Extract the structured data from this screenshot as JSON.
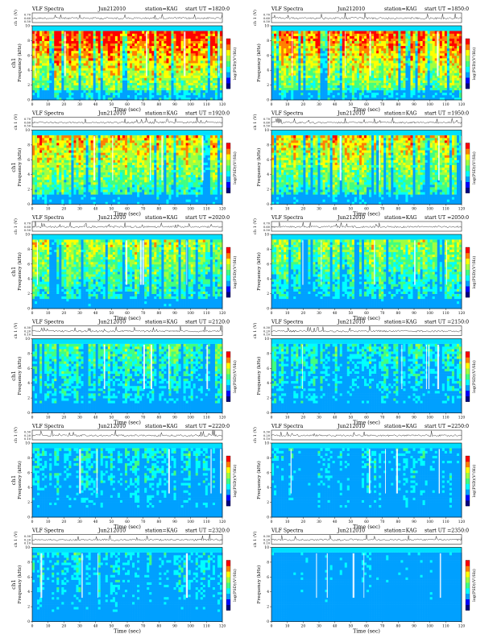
{
  "chart_data": [
    {
      "type": "heatmap",
      "title_left": "VLF Spectra",
      "date": "Jun212010",
      "station": "station=KAG",
      "start": "start UT =1820:0",
      "ylabel_top": "ch 1 (V)",
      "ylabel_main": "Frequency (kHz)",
      "ch_label": "ch1",
      "colorbar_label": "log(PSD)(V²/Hz)",
      "xlabel": "Time (sec)",
      "xticks": [
        0,
        10,
        20,
        30,
        40,
        50,
        60,
        70,
        80,
        90,
        100,
        110,
        120
      ],
      "yticks": [
        0,
        2,
        4,
        6,
        8,
        10
      ],
      "ylim": [
        0,
        10
      ],
      "xlim": [
        0,
        120
      ],
      "top_ticks": [
        "0.70",
        "0.60",
        "0.50"
      ],
      "intensity": 0.86
    },
    {
      "type": "heatmap",
      "title_left": "VLF Spectra",
      "date": "Jun212010",
      "station": "station=KAG",
      "start": "start UT =1850:0",
      "ylabel_top": "ch 1 (V)",
      "ylabel_main": "Frequency (kHz)",
      "ch_label": "",
      "colorbar_label": "log(PSD)(V²/Hz)",
      "xlabel": "Time (sec)",
      "xticks": [
        0,
        10,
        20,
        30,
        40,
        50,
        60,
        70,
        80,
        90,
        100,
        110,
        120
      ],
      "yticks": [
        0,
        2,
        4,
        6,
        8,
        10
      ],
      "ylim": [
        0,
        10
      ],
      "xlim": [
        0,
        120
      ],
      "top_ticks": [
        "0.70",
        "0.60",
        "0.50"
      ],
      "intensity": 0.82
    },
    {
      "type": "heatmap",
      "title_left": "VLF Spectra",
      "date": "Jun212010",
      "station": "station=KAG",
      "start": "start UT =1920:0",
      "ylabel_top": "ch 1 (V)",
      "ylabel_main": "Frequency (kHz)",
      "ch_label": "ch1",
      "colorbar_label": "log(PSD)(V²/Hz)",
      "xlabel": "Time (sec)",
      "xticks": [
        0,
        10,
        20,
        30,
        40,
        50,
        60,
        70,
        80,
        90,
        100,
        110,
        120
      ],
      "yticks": [
        0,
        2,
        4,
        6,
        8,
        10
      ],
      "ylim": [
        0,
        10
      ],
      "xlim": [
        0,
        120
      ],
      "top_ticks": [
        "0.70",
        "0.60",
        "0.50"
      ],
      "intensity": 0.72
    },
    {
      "type": "heatmap",
      "title_left": "VLF Spectra",
      "date": "Jun212010",
      "station": "station=KAG",
      "start": "start UT =1950:0",
      "ylabel_top": "ch 1 (V)",
      "ylabel_main": "Frequency (kHz)",
      "ch_label": "",
      "colorbar_label": "log(PSD)(V²/Hz)",
      "xlabel": "Time (sec)",
      "xticks": [
        0,
        10,
        20,
        30,
        40,
        50,
        60,
        70,
        80,
        90,
        100,
        110,
        120
      ],
      "yticks": [
        0,
        2,
        4,
        6,
        8,
        10
      ],
      "ylim": [
        0,
        10
      ],
      "xlim": [
        0,
        120
      ],
      "top_ticks": [
        "0.70",
        "0.60",
        "0.50"
      ],
      "intensity": 0.7
    },
    {
      "type": "heatmap",
      "title_left": "VLF Spectra",
      "date": "Jun212010",
      "station": "station=KAG",
      "start": "start UT =2020:0",
      "ylabel_top": "ch 1 (V)",
      "ylabel_main": "Frequency (kHz)",
      "ch_label": "ch1",
      "colorbar_label": "log(PSD)(V²/Hz)",
      "xlabel": "Time (sec)",
      "xticks": [
        0,
        10,
        20,
        30,
        40,
        50,
        60,
        70,
        80,
        90,
        100,
        110,
        120
      ],
      "yticks": [
        0,
        2,
        4,
        6,
        8,
        10
      ],
      "ylim": [
        0,
        10
      ],
      "xlim": [
        0,
        120
      ],
      "top_ticks": [
        "0.70",
        "0.60",
        "0.50"
      ],
      "intensity": 0.6
    },
    {
      "type": "heatmap",
      "title_left": "VLF Spectra",
      "date": "Jun212010",
      "station": "station=KAG",
      "start": "start UT =2050:0",
      "ylabel_top": "ch 1 (V)",
      "ylabel_main": "Frequency (kHz)",
      "ch_label": "",
      "colorbar_label": "log(PSD)(V²/Hz)",
      "xlabel": "Time (sec)",
      "xticks": [
        0,
        10,
        20,
        30,
        40,
        50,
        60,
        70,
        80,
        90,
        100,
        110,
        120
      ],
      "yticks": [
        0,
        2,
        4,
        6,
        8,
        10
      ],
      "ylim": [
        0,
        10
      ],
      "xlim": [
        0,
        120
      ],
      "top_ticks": [
        "0.70",
        "0.60",
        "0.50"
      ],
      "intensity": 0.56
    },
    {
      "type": "heatmap",
      "title_left": "VLF Spectra",
      "date": "Jun212010",
      "station": "station=KAG",
      "start": "start UT =2120:0",
      "ylabel_top": "ch 1 (V)",
      "ylabel_main": "Frequency (kHz)",
      "ch_label": "ch1",
      "colorbar_label": "log(PSD)(V²/Hz)",
      "xlabel": "Time (sec)",
      "xticks": [
        0,
        10,
        20,
        30,
        40,
        50,
        60,
        70,
        80,
        90,
        100,
        110,
        120
      ],
      "yticks": [
        0,
        2,
        4,
        6,
        8,
        10
      ],
      "ylim": [
        0,
        10
      ],
      "xlim": [
        0,
        120
      ],
      "top_ticks": [
        "0.30",
        "0.20",
        "0.10"
      ],
      "intensity": 0.46
    },
    {
      "type": "heatmap",
      "title_left": "VLF Spectra",
      "date": "Jun212010",
      "station": "station=KAG",
      "start": "start UT =2150:0",
      "ylabel_top": "ch 1 (V)",
      "ylabel_main": "Frequency (kHz)",
      "ch_label": "",
      "colorbar_label": "log(PSD)(V²/Hz)",
      "xlabel": "Time (sec)",
      "xticks": [
        0,
        10,
        20,
        30,
        40,
        50,
        60,
        70,
        80,
        90,
        100,
        110,
        120
      ],
      "yticks": [
        0,
        2,
        4,
        6,
        8,
        10
      ],
      "ylim": [
        0,
        10
      ],
      "xlim": [
        0,
        120
      ],
      "top_ticks": [
        "0.30",
        "0.20",
        "0.10"
      ],
      "intensity": 0.4
    },
    {
      "type": "heatmap",
      "title_left": "VLF Spectra",
      "date": "Jun212010",
      "station": "station=KAG",
      "start": "start UT =2220:0",
      "ylabel_top": "ch 1 (V)",
      "ylabel_main": "Frequency (kHz)",
      "ch_label": "ch1",
      "colorbar_label": "log(PSD)(V²/Hz)",
      "xlabel": "Time (sec)",
      "xticks": [
        0,
        10,
        20,
        30,
        40,
        50,
        60,
        70,
        80,
        90,
        100,
        110,
        120
      ],
      "yticks": [
        0,
        2,
        4,
        6,
        8,
        10
      ],
      "ylim": [
        0,
        10
      ],
      "xlim": [
        0,
        120
      ],
      "top_ticks": [
        "0.30",
        "0.20",
        "0.10"
      ],
      "intensity": 0.34
    },
    {
      "type": "heatmap",
      "title_left": "VLF Spectra",
      "date": "Jun212010",
      "station": "station=KAG",
      "start": "start UT =2250:0",
      "ylabel_top": "ch 1 (V)",
      "ylabel_main": "Frequency (kHz)",
      "ch_label": "",
      "colorbar_label": "log(PSD)(V²/Hz)",
      "xlabel": "Time (sec)",
      "xticks": [
        0,
        10,
        20,
        30,
        40,
        50,
        60,
        70,
        80,
        90,
        100,
        110,
        120
      ],
      "yticks": [
        0,
        2,
        4,
        6,
        8,
        10
      ],
      "ylim": [
        0,
        10
      ],
      "xlim": [
        0,
        120
      ],
      "top_ticks": [
        "0.30",
        "0.20",
        "0.10"
      ],
      "intensity": 0.28
    },
    {
      "type": "heatmap",
      "title_left": "VLF Spectra",
      "date": "Jun212010",
      "station": "station=KAG",
      "start": "start UT =2320:0",
      "ylabel_top": "ch 1 (V)",
      "ylabel_main": "Frequency (kHz)",
      "ch_label": "ch1",
      "colorbar_label": "log(PSD)(V²/Hz)",
      "xlabel": "Time (sec)",
      "xticks": [
        0,
        10,
        20,
        30,
        40,
        50,
        60,
        70,
        80,
        90,
        100,
        110,
        120
      ],
      "yticks": [
        0,
        2,
        4,
        6,
        8,
        10
      ],
      "ylim": [
        0,
        10
      ],
      "xlim": [
        0,
        120
      ],
      "top_ticks": [
        "0.30",
        "0.20",
        "0.10"
      ],
      "intensity": 0.32
    },
    {
      "type": "heatmap",
      "title_left": "VLF Spectra",
      "date": "Jun212010",
      "station": "station=KAG",
      "start": "start UT =2350:0",
      "ylabel_top": "ch 1 (V)",
      "ylabel_main": "Frequency (kHz)",
      "ch_label": "",
      "colorbar_label": "log(PSD)(V²/Hz)",
      "xlabel": "Time (sec)",
      "xticks": [
        0,
        10,
        20,
        30,
        40,
        50,
        60,
        70,
        80,
        90,
        100,
        110,
        120
      ],
      "yticks": [
        0,
        2,
        4,
        6,
        8,
        10
      ],
      "ylim": [
        0,
        10
      ],
      "xlim": [
        0,
        120
      ],
      "top_ticks": [
        "0.30",
        "0.20",
        "0.10"
      ],
      "intensity": 0.18
    }
  ],
  "colorscale": {
    "colors": [
      "#000080",
      "#0000ff",
      "#00a0ff",
      "#00ffff",
      "#40ff80",
      "#a0ff40",
      "#ffff00",
      "#ff8000",
      "#ff0000"
    ],
    "band_color": "#00e0ff"
  }
}
